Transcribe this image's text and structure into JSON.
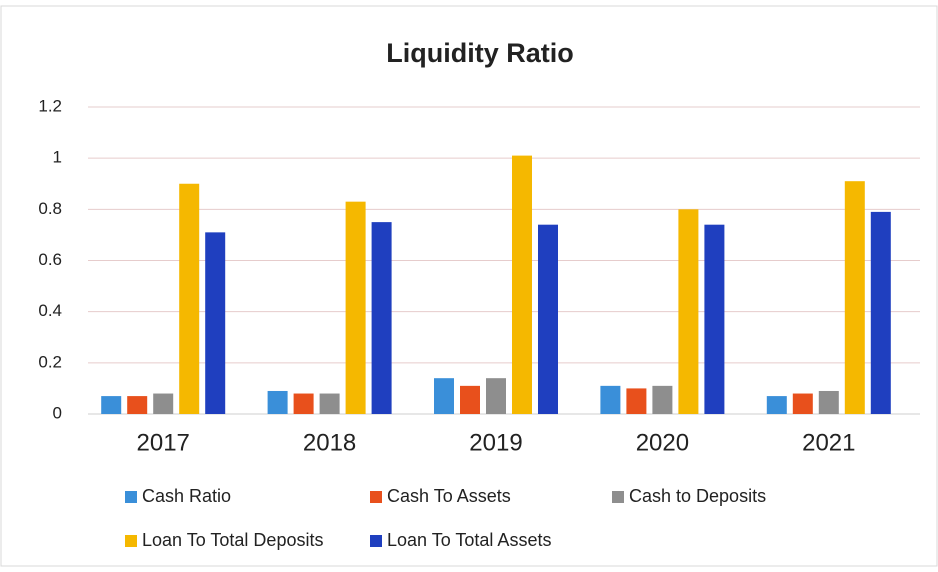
{
  "chart_data": {
    "type": "bar",
    "title": "Liquidity Ratio",
    "categories": [
      "2017",
      "2018",
      "2019",
      "2020",
      "2021"
    ],
    "series": [
      {
        "name": "Cash Ratio",
        "color": "#3a8fd9",
        "values": [
          0.07,
          0.09,
          0.14,
          0.11,
          0.07
        ]
      },
      {
        "name": "Cash To Assets",
        "color": "#e8501c",
        "values": [
          0.07,
          0.08,
          0.11,
          0.1,
          0.08
        ]
      },
      {
        "name": "Cash to Deposits",
        "color": "#8e8e8e",
        "values": [
          0.08,
          0.08,
          0.14,
          0.11,
          0.09
        ]
      },
      {
        "name": "Loan To Total Deposits",
        "color": "#f5b800",
        "values": [
          0.9,
          0.83,
          1.01,
          0.8,
          0.91
        ]
      },
      {
        "name": "Loan To Total Assets",
        "color": "#1f3fbf",
        "values": [
          0.71,
          0.75,
          0.74,
          0.74,
          0.79
        ]
      }
    ],
    "ylim": [
      0,
      1.2
    ],
    "yticks": [
      0,
      0.2,
      0.4,
      0.6,
      0.8,
      1,
      1.2
    ],
    "grid": true
  }
}
